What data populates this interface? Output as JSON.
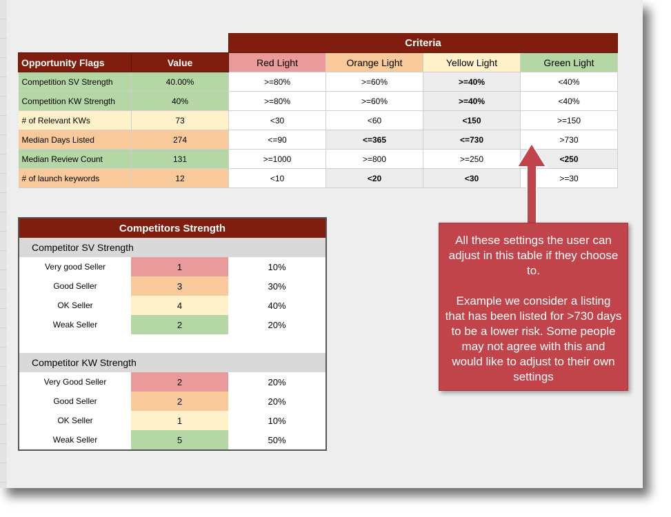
{
  "criteria": {
    "title": "Criteria",
    "header": {
      "flags_label": "Opportunity Flags",
      "value_label": "Value",
      "red": "Red Light",
      "orange": "Orange Light",
      "yellow": "Yellow Light",
      "green": "Green Light"
    },
    "rows": [
      {
        "flag": "Competition SV Strength",
        "value": "40.00%",
        "red": ">=80%",
        "orange": ">=60%",
        "yellow": ">=40%",
        "green": "<40%"
      },
      {
        "flag": "Competition KW Strength",
        "value": "40%",
        "red": ">=80%",
        "orange": ">=60%",
        "yellow": ">=40%",
        "green": "<40%"
      },
      {
        "flag": "# of Relevant KWs",
        "value": "73",
        "red": "<30",
        "orange": "<60",
        "yellow": "<150",
        "green": ">=150"
      },
      {
        "flag": "Median Days Listed",
        "value": "274",
        "red": "<=90",
        "orange": "<=365",
        "yellow": "<=730",
        "green": ">730"
      },
      {
        "flag": "Median Review Count",
        "value": "131",
        "red": ">=1000",
        "orange": ">=800",
        "yellow": ">=250",
        "green": "<250"
      },
      {
        "flag": "# of launch keywords",
        "value": "12",
        "red": "<10",
        "orange": "<20",
        "yellow": "<30",
        "green": ">=30"
      }
    ]
  },
  "competitors": {
    "title": "Competitors Strength",
    "sv": {
      "heading": "Competitor SV Strength",
      "rows": [
        {
          "label": "Very good Seller",
          "count": "1",
          "pct": "10%"
        },
        {
          "label": "Good Seller",
          "count": "3",
          "pct": "30%"
        },
        {
          "label": "OK Seller",
          "count": "4",
          "pct": "40%"
        },
        {
          "label": "Weak Seller",
          "count": "2",
          "pct": "20%"
        }
      ]
    },
    "kw": {
      "heading": "Competitor KW Strength",
      "rows": [
        {
          "label": "Very Good Seller",
          "count": "2",
          "pct": "20%"
        },
        {
          "label": "Good Seller",
          "count": "2",
          "pct": "20%"
        },
        {
          "label": "OK Seller",
          "count": "1",
          "pct": "10%"
        },
        {
          "label": "Weak Seller",
          "count": "5",
          "pct": "50%"
        }
      ]
    }
  },
  "callout": {
    "line1": "All these settings the user can adjust in this table if they choose to.",
    "line2": "Example we consider a listing that has been listed for >730 days to be a lower risk. Some people may not agree with this and would like to adjust to their own settings"
  },
  "colors": {
    "header_dark_red": "#7f1e0e",
    "red_light": "#e99a9a",
    "orange_light": "#f8c99b",
    "yellow_light": "#fff1c9",
    "green_light": "#b5d6a5",
    "callout": "#c0444a"
  }
}
